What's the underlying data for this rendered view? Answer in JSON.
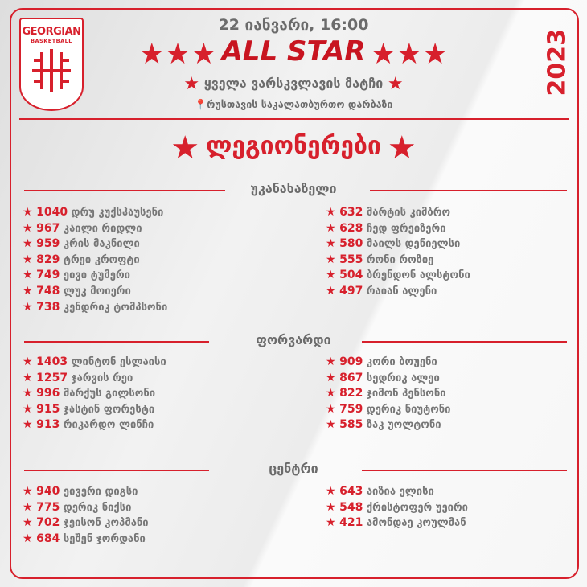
{
  "brand": {
    "logo_line1": "GEORGIAN",
    "logo_line2": "BASKETBALL",
    "accent": "#d7202c"
  },
  "year": "2023",
  "header": {
    "date": "22 იანვარი, 16:00",
    "event": "ALL STAR",
    "subtitle": "ყველა ვარსკვლავის მატჩი",
    "venue": "რუსთავის საკალათბურთო დარბაზი",
    "venue_icon": "location-pin-icon"
  },
  "title": "ლეგიონერები",
  "sections": [
    {
      "label": "უკანახაზელი",
      "left": [
        {
          "votes": "1040",
          "name": "დრუ კუქსჰაუსენი"
        },
        {
          "votes": "967",
          "name": "კაილი რიდლი"
        },
        {
          "votes": "959",
          "name": "კრის მაკნილი"
        },
        {
          "votes": "829",
          "name": "ტრეი კროფტი"
        },
        {
          "votes": "749",
          "name": "ეივი ტუმერი"
        },
        {
          "votes": "748",
          "name": "ლუკ მოიერი"
        },
        {
          "votes": "738",
          "name": "კენდრიკ ტომპსონი"
        }
      ],
      "right": [
        {
          "votes": "632",
          "name": "მარტის კიმბრო"
        },
        {
          "votes": "628",
          "name": "ჩედ ფრეიზერი"
        },
        {
          "votes": "580",
          "name": "მაილს დენიელსი"
        },
        {
          "votes": "555",
          "name": "რონი როზიე"
        },
        {
          "votes": "504",
          "name": "ბრენდონ ალსტონი"
        },
        {
          "votes": "497",
          "name": "რაიან ალენი"
        }
      ]
    },
    {
      "label": "ფორვარდი",
      "left": [
        {
          "votes": "1403",
          "name": "ლინტონ ესლაისი"
        },
        {
          "votes": "1257",
          "name": "ჯარვის რეი"
        },
        {
          "votes": "996",
          "name": "მარქუს გილსონი"
        },
        {
          "votes": "915",
          "name": "ჯასტინ ფორესტი"
        },
        {
          "votes": "913",
          "name": "რიკარდო ლინჩი"
        }
      ],
      "right": [
        {
          "votes": "909",
          "name": "კორი ბოუენი"
        },
        {
          "votes": "867",
          "name": "სედრიკ ალეი"
        },
        {
          "votes": "822",
          "name": "ჯიმონ ჰენსონი"
        },
        {
          "votes": "759",
          "name": "დერიკ ნიუტონი"
        },
        {
          "votes": "585",
          "name": "ზაკ უოლტონი"
        }
      ]
    },
    {
      "label": "ცენტრი",
      "left": [
        {
          "votes": "940",
          "name": "ეივერი დიგსი"
        },
        {
          "votes": "775",
          "name": "დერიკ ნიქსი"
        },
        {
          "votes": "702",
          "name": "ჯეისონ კოპმანი"
        },
        {
          "votes": "684",
          "name": "სეშენ ჯორდანი"
        }
      ],
      "right": [
        {
          "votes": "643",
          "name": "აიზია ელისი"
        },
        {
          "votes": "548",
          "name": "ქრისტოფერ უეირი"
        },
        {
          "votes": "421",
          "name": "ამონდაე კოულმან"
        }
      ]
    }
  ]
}
